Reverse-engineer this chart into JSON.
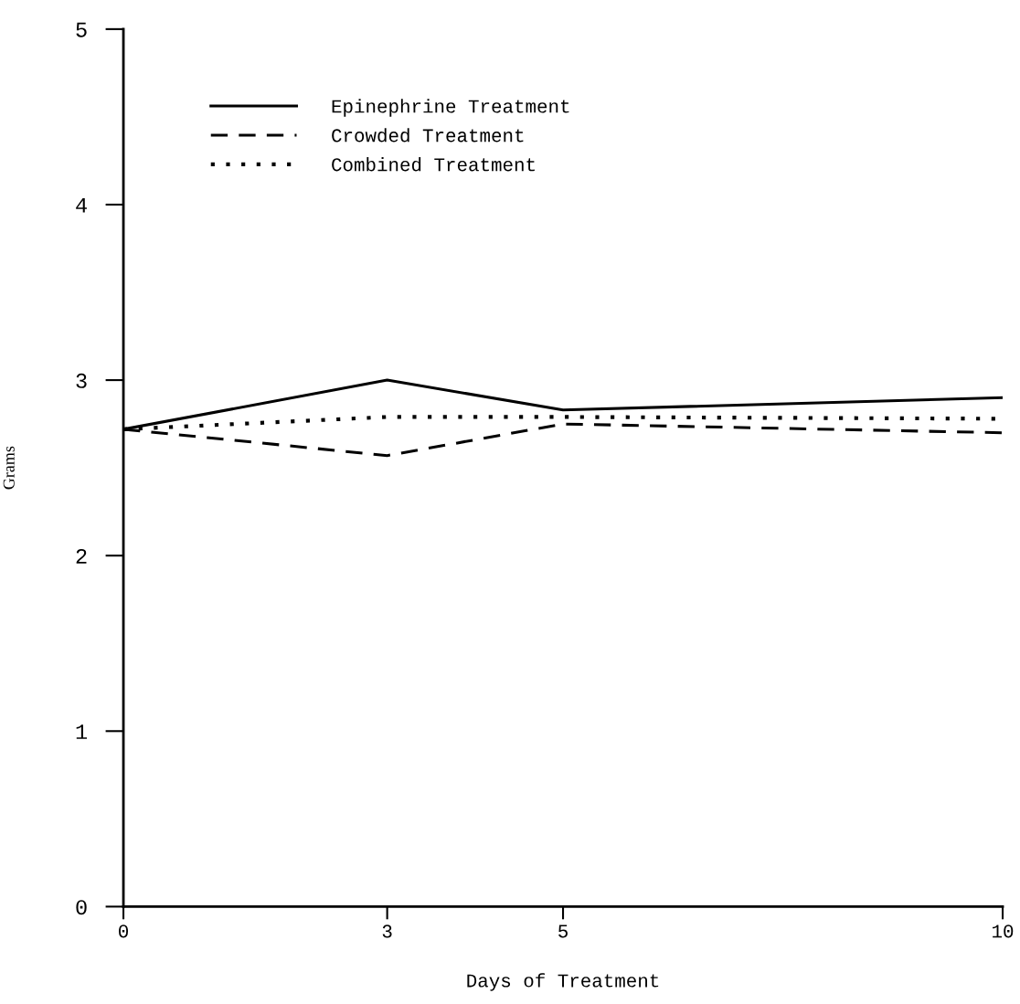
{
  "chart_data": {
    "type": "line",
    "xlabel": "Days of Treatment",
    "ylabel": "Grams",
    "x": [
      0,
      3,
      5,
      10
    ],
    "series": [
      {
        "name": "Epinephrine Treatment",
        "color": "#000000",
        "values": [
          2.72,
          3.0,
          2.83,
          2.9
        ],
        "line_style": "solid"
      },
      {
        "name": "Crowded Treatment",
        "color": "#000000",
        "values": [
          2.72,
          2.57,
          2.75,
          2.7
        ],
        "line_style": "dashed"
      },
      {
        "name": "Combined Treatment",
        "color": "#000000",
        "values": [
          2.72,
          2.79,
          2.79,
          2.78
        ],
        "line_style": "dotted"
      }
    ],
    "xlim": [
      0,
      10
    ],
    "xticks": [
      0,
      3,
      5,
      10
    ],
    "ylim": [
      0,
      5
    ],
    "yticks": [
      0,
      1,
      2,
      3,
      4,
      5
    ],
    "grid": false,
    "legend": "top left",
    "marker": "none"
  }
}
